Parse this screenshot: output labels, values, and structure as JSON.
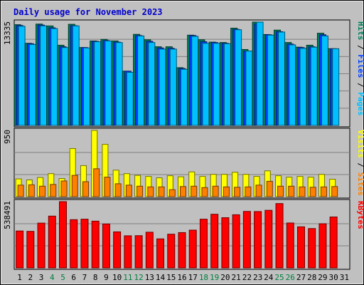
{
  "chart_data": {
    "type": "bar",
    "title": "Daily usage for November 2023",
    "colors": {
      "background": "#c0c0c0",
      "frame": "#000000",
      "title_text": "#0000cc",
      "weekday": "#000000",
      "weekend": "#008040",
      "hits": "#00805c",
      "files": "#0040ff",
      "pages": "#00c0ff",
      "visits": "#ffff00",
      "sites": "#ff8000",
      "kbytes": "#ff0000"
    },
    "days": [
      "1",
      "2",
      "3",
      "4",
      "5",
      "6",
      "7",
      "8",
      "9",
      "10",
      "11",
      "12",
      "13",
      "14",
      "15",
      "16",
      "17",
      "18",
      "19",
      "20",
      "21",
      "22",
      "23",
      "24",
      "25",
      "26",
      "27",
      "28",
      "29",
      "30",
      "31"
    ],
    "weekend_days": [
      "4",
      "5",
      "11",
      "12",
      "18",
      "19",
      "25",
      "26"
    ],
    "panels": [
      {
        "id": "top",
        "max_label": "13335",
        "ymax": 13335,
        "side_labels": [
          {
            "text": "Hits",
            "color": "#00805c"
          },
          {
            "text": " / ",
            "color": "#000000"
          },
          {
            "text": "Files",
            "color": "#0040ff"
          },
          {
            "text": " / ",
            "color": "#000000"
          },
          {
            "text": "Pages",
            "color": "#00c0ff"
          }
        ],
        "series": [
          {
            "name": "Hits",
            "color": "#00805c",
            "values": [
              13000,
              10600,
              13080,
              12840,
              10350,
              13050,
              10050,
              10900,
              11100,
              10900,
              7000,
              11750,
              11050,
              10150,
              10150,
              7450,
              11650,
              11050,
              10750,
              10700,
              12550,
              9800,
              13335,
              11730,
              12300,
              10700,
              10100,
              10350,
              11900,
              9900,
              0
            ]
          },
          {
            "name": "Files",
            "color": "#0040ff",
            "values": [
              12900,
              10550,
              12950,
              12600,
              10150,
              12880,
              10050,
              10850,
              10950,
              10750,
              7000,
              11600,
              10850,
              10000,
              9950,
              7350,
              11600,
              10800,
              10700,
              10600,
              12400,
              9600,
              13100,
              11700,
              12100,
              10500,
              10050,
              10150,
              11700,
              9900,
              0
            ]
          },
          {
            "name": "Pages",
            "color": "#00c0ff",
            "values": [
              12800,
              10450,
              12850,
              12500,
              10050,
              12850,
              10000,
              10800,
              10900,
              10700,
              6850,
              11550,
              10700,
              9850,
              9850,
              7250,
              11500,
              10600,
              10600,
              10550,
              12350,
              9600,
              13335,
              11650,
              12050,
              10400,
              9950,
              10100,
              11550,
              9900,
              0
            ]
          }
        ]
      },
      {
        "id": "middle",
        "max_label": "950",
        "ymax": 950,
        "side_labels": [
          {
            "text": "Visits",
            "color": "#ffff00"
          },
          {
            "text": " / ",
            "color": "#000000"
          },
          {
            "text": "Sites",
            "color": "#ff8000"
          }
        ],
        "series": [
          {
            "name": "Visits",
            "color": "#ffff00",
            "values": [
              255,
              240,
              275,
              330,
              260,
              690,
              445,
              950,
              750,
              380,
              330,
              305,
              290,
              270,
              300,
              285,
              355,
              290,
              320,
              320,
              350,
              320,
              290,
              370,
              300,
              280,
              290,
              280,
              320,
              250,
              0
            ]
          },
          {
            "name": "Sites",
            "color": "#ff8000",
            "values": [
              165,
              170,
              150,
              175,
              225,
              305,
              215,
              400,
              280,
              185,
              165,
              150,
              140,
              140,
              100,
              145,
              150,
              130,
              150,
              140,
              135,
              140,
              165,
              220,
              150,
              150,
              140,
              135,
              140,
              145,
              0
            ]
          }
        ]
      },
      {
        "id": "bottom",
        "max_label": "538491",
        "ymax": 538491,
        "side_labels": [
          {
            "text": "KBytes",
            "color": "#ff0000"
          }
        ],
        "series": [
          {
            "name": "KBytes",
            "color": "#ff0000",
            "values": [
              300000,
              297000,
              364000,
              421000,
              538491,
              392000,
              396000,
              380000,
              357000,
              293000,
              261000,
              262000,
              290000,
              236000,
              274000,
              287000,
              307000,
              396000,
              436000,
              408000,
              432000,
              459000,
              458000,
              468000,
              523000,
              365000,
              334000,
              320000,
              359000,
              414000,
              0
            ]
          }
        ]
      }
    ]
  }
}
